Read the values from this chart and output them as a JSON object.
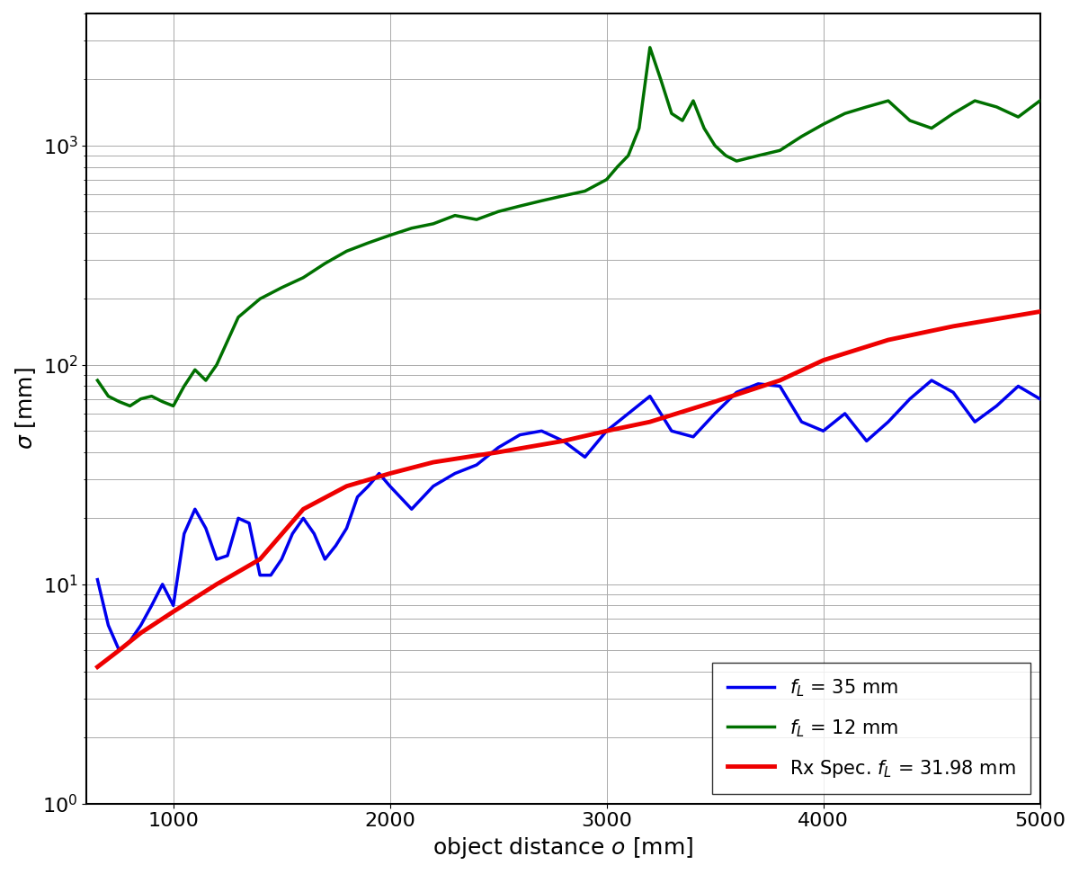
{
  "title": "",
  "xlabel": "object distance $o$ [mm]",
  "ylabel": "$\\sigma$ [mm]",
  "xlim": [
    600,
    5000
  ],
  "ylim_log": [
    1,
    4000
  ],
  "grid": true,
  "background_color": "#ffffff",
  "legend_loc": "lower right",
  "blue_x": [
    650,
    700,
    750,
    800,
    850,
    900,
    950,
    1000,
    1050,
    1100,
    1150,
    1200,
    1250,
    1300,
    1350,
    1400,
    1450,
    1500,
    1550,
    1600,
    1650,
    1700,
    1750,
    1800,
    1850,
    1900,
    1950,
    2000,
    2100,
    2200,
    2300,
    2400,
    2500,
    2600,
    2700,
    2800,
    2900,
    3000,
    3100,
    3200,
    3300,
    3400,
    3500,
    3600,
    3700,
    3800,
    3900,
    4000,
    4100,
    4200,
    4300,
    4400,
    4500,
    4600,
    4700,
    4800,
    4900,
    5000
  ],
  "blue_y": [
    10.5,
    6.5,
    5.0,
    5.5,
    6.5,
    8.0,
    10.0,
    8.0,
    17.0,
    22.0,
    18.0,
    13.0,
    13.5,
    20.0,
    19.0,
    11.0,
    11.0,
    13.0,
    17.0,
    20.0,
    17.0,
    13.0,
    15.0,
    18.0,
    25.0,
    28.0,
    32.0,
    28.0,
    22.0,
    28.0,
    32.0,
    35.0,
    42.0,
    48.0,
    50.0,
    45.0,
    38.0,
    50.0,
    60.0,
    72.0,
    50.0,
    47.0,
    60.0,
    75.0,
    82.0,
    80.0,
    55.0,
    50.0,
    60.0,
    45.0,
    55.0,
    70.0,
    85.0,
    75.0,
    55.0,
    65.0,
    80.0,
    70.0
  ],
  "green_x": [
    650,
    700,
    750,
    800,
    850,
    900,
    950,
    1000,
    1050,
    1100,
    1150,
    1200,
    1300,
    1400,
    1500,
    1600,
    1700,
    1800,
    1900,
    2000,
    2100,
    2200,
    2300,
    2400,
    2500,
    2600,
    2700,
    2800,
    2900,
    3000,
    3050,
    3100,
    3150,
    3200,
    3250,
    3300,
    3350,
    3400,
    3450,
    3500,
    3550,
    3600,
    3700,
    3800,
    3900,
    4000,
    4100,
    4200,
    4300,
    4400,
    4500,
    4600,
    4700,
    4800,
    4900,
    5000
  ],
  "green_y": [
    85.0,
    72.0,
    68.0,
    65.0,
    70.0,
    72.0,
    68.0,
    65.0,
    80.0,
    95.0,
    85.0,
    100.0,
    165.0,
    200.0,
    225.0,
    250.0,
    290.0,
    330.0,
    360.0,
    390.0,
    420.0,
    440.0,
    480.0,
    460.0,
    500.0,
    530.0,
    560.0,
    590.0,
    620.0,
    700.0,
    800.0,
    900.0,
    1200.0,
    2800.0,
    2000.0,
    1400.0,
    1300.0,
    1600.0,
    1200.0,
    1000.0,
    900.0,
    850.0,
    900.0,
    950.0,
    1100.0,
    1250.0,
    1400.0,
    1500.0,
    1600.0,
    1300.0,
    1200.0,
    1400.0,
    1600.0,
    1500.0,
    1350.0,
    1600.0
  ],
  "red_x": [
    650,
    750,
    850,
    1000,
    1200,
    1400,
    1600,
    1800,
    2000,
    2200,
    2500,
    2800,
    3000,
    3200,
    3500,
    3800,
    4000,
    4300,
    4600,
    5000
  ],
  "red_y": [
    4.2,
    5.0,
    6.0,
    7.5,
    10.0,
    13.0,
    22.0,
    28.0,
    32.0,
    36.0,
    40.0,
    45.0,
    50.0,
    55.0,
    68.0,
    85.0,
    105.0,
    130.0,
    150.0,
    175.0
  ],
  "blue_color": "#0000ee",
  "green_color": "#007000",
  "red_color": "#ee0000",
  "blue_linewidth": 2.5,
  "green_linewidth": 2.5,
  "red_linewidth": 3.5,
  "legend_blue": "$f_L$ = 35 mm",
  "legend_green": "$f_L$ = 12 mm",
  "legend_red": "Rx Spec. $f_L$ = 31.98 mm"
}
